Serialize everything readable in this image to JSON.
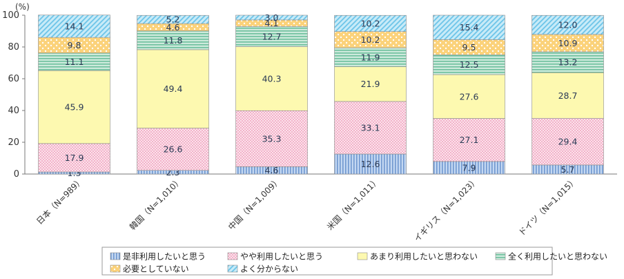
{
  "chart_data": {
    "type": "bar",
    "stacked": true,
    "orientation": "vertical",
    "unit": "(%)",
    "ylim": [
      0,
      100
    ],
    "yticks": [
      0,
      20,
      40,
      60,
      80,
      100
    ],
    "categories": [
      "日本（N=989）",
      "韓国（N=1,010）",
      "中国（N=1,009）",
      "米国（N=1,011）",
      "イギリス（N=1,023）",
      "ドイツ（N=1,015）"
    ],
    "series": [
      {
        "name": "是非利用したいと思う",
        "values": [
          1.3,
          2.3,
          4.6,
          12.6,
          7.9,
          5.7
        ],
        "color": "#8fb2e0",
        "pattern": "vertical-lines"
      },
      {
        "name": "やや利用したいと思う",
        "values": [
          17.9,
          26.6,
          35.3,
          33.1,
          27.1,
          29.4
        ],
        "color": "#f6c8d8",
        "pattern": "dots-pink"
      },
      {
        "name": "あまり利用したいと思わない",
        "values": [
          45.9,
          49.4,
          40.3,
          21.9,
          27.6,
          28.7
        ],
        "color": "#fbf5a6",
        "pattern": "solid"
      },
      {
        "name": "全く利用したいと思わない",
        "values": [
          11.1,
          11.8,
          12.7,
          11.9,
          12.5,
          13.2
        ],
        "color": "#a9d8c4",
        "pattern": "horizontal-lines"
      },
      {
        "name": "必要としていない",
        "values": [
          9.8,
          4.6,
          4.1,
          10.2,
          9.5,
          10.9
        ],
        "color": "#fbd87a",
        "pattern": "dots-white"
      },
      {
        "name": "よく分からない",
        "values": [
          14.1,
          5.2,
          3.0,
          10.2,
          15.4,
          12.0
        ],
        "color": "#9ed8f0",
        "pattern": "diagonal-lines"
      }
    ],
    "grid": false,
    "legend_position": "bottom"
  }
}
